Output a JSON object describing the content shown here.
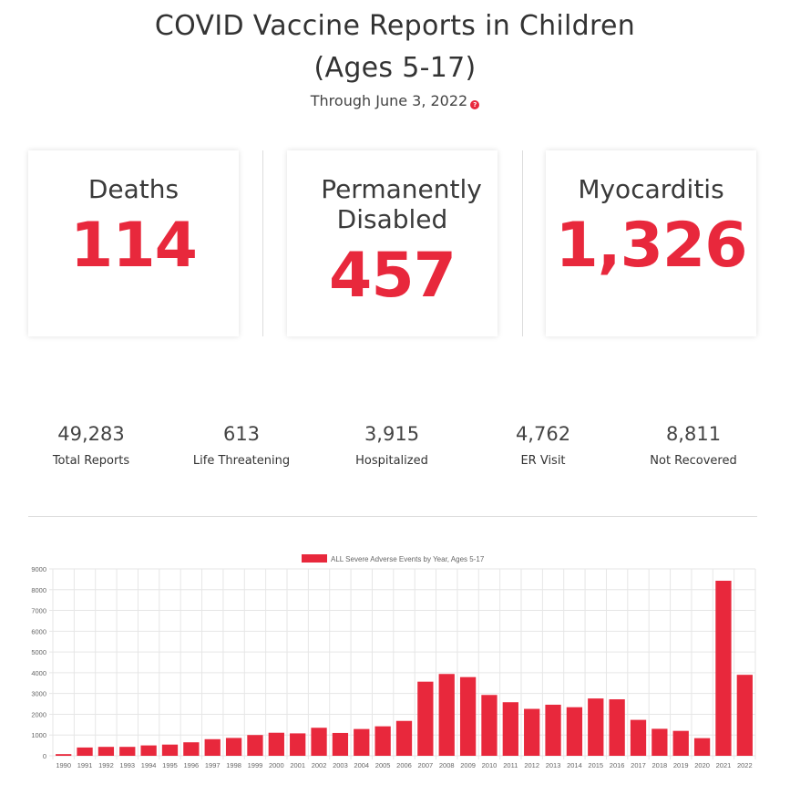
{
  "header": {
    "title_line1": "COVID Vaccine Reports in Children",
    "title_line2": "(Ages 5-17)",
    "subtitle": "Through June 3, 2022",
    "help_symbol": "?"
  },
  "cards": [
    {
      "label_line1": "Deaths",
      "label_line2": "",
      "value": "114"
    },
    {
      "label_line1": "Permanently",
      "label_line2": "Disabled",
      "value": "457"
    },
    {
      "label_line1": "Myocarditis",
      "label_line2": "",
      "value": "1,326"
    }
  ],
  "stats": [
    {
      "value": "49,283",
      "label": "Total Reports"
    },
    {
      "value": "613",
      "label": "Life Threatening"
    },
    {
      "value": "3,915",
      "label": "Hospitalized"
    },
    {
      "value": "4,762",
      "label": "ER Visit"
    },
    {
      "value": "8,811",
      "label": "Not Recovered"
    }
  ],
  "colors": {
    "accent": "#e8283c",
    "text": "#333333",
    "grid": "#e6e6e6"
  },
  "chart_data": {
    "type": "bar",
    "legend": "ALL Severe Adverse Events by Year, Ages 5-17",
    "legend_position": "top-center",
    "categories": [
      "1990",
      "1991",
      "1992",
      "1993",
      "1994",
      "1995",
      "1996",
      "1997",
      "1998",
      "1999",
      "2000",
      "2001",
      "2002",
      "2003",
      "2004",
      "2005",
      "2006",
      "2007",
      "2008",
      "2009",
      "2010",
      "2011",
      "2012",
      "2013",
      "2014",
      "2015",
      "2016",
      "2017",
      "2018",
      "2019",
      "2020",
      "2021",
      "2022"
    ],
    "values": [
      80,
      400,
      430,
      430,
      500,
      540,
      650,
      800,
      860,
      1000,
      1110,
      1080,
      1350,
      1100,
      1290,
      1420,
      1680,
      3570,
      3940,
      3790,
      2930,
      2580,
      2260,
      2460,
      2340,
      2760,
      2720,
      1730,
      1300,
      1200,
      850,
      8430,
      3900
    ],
    "ylim": [
      0,
      9000
    ],
    "yticks": [
      "0",
      "1000",
      "2000",
      "3000",
      "4000",
      "5000",
      "6000",
      "7000",
      "8000",
      "9000"
    ],
    "grid": true,
    "xlabel": "",
    "ylabel": ""
  }
}
